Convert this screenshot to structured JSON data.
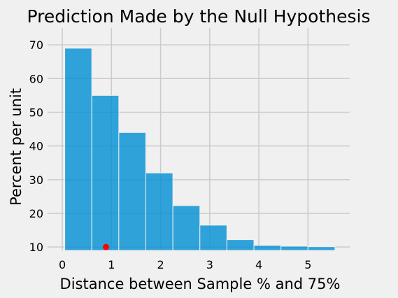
{
  "chart_data": {
    "type": "bar",
    "title": "Prediction Made by the Null Hypothesis",
    "xlabel": "Distance between Sample % and 75%",
    "ylabel": "Percent per unit",
    "xlim": [
      -0.3,
      5.85
    ],
    "ylim": [
      9,
      75
    ],
    "xticks": [
      0,
      1,
      2,
      3,
      4,
      5
    ],
    "yticks": [
      10,
      20,
      30,
      40,
      50,
      60,
      70
    ],
    "grid": true,
    "bar_color": "#008fd5",
    "point_color": "#ff0000",
    "bins": [
      {
        "x0": 0.05,
        "x1": 0.6,
        "value": 69
      },
      {
        "x0": 0.6,
        "x1": 1.15,
        "value": 55
      },
      {
        "x0": 1.15,
        "x1": 1.7,
        "value": 44
      },
      {
        "x0": 1.7,
        "x1": 2.25,
        "value": 32
      },
      {
        "x0": 2.25,
        "x1": 2.8,
        "value": 22.3
      },
      {
        "x0": 2.8,
        "x1": 3.35,
        "value": 16.5
      },
      {
        "x0": 3.35,
        "x1": 3.9,
        "value": 12.2
      },
      {
        "x0": 3.9,
        "x1": 4.45,
        "value": 10.5
      },
      {
        "x0": 4.45,
        "x1": 5.0,
        "value": 10.25
      },
      {
        "x0": 5.0,
        "x1": 5.55,
        "value": 10.1
      }
    ],
    "points": [
      {
        "x": 0.89,
        "y": 10
      }
    ]
  }
}
